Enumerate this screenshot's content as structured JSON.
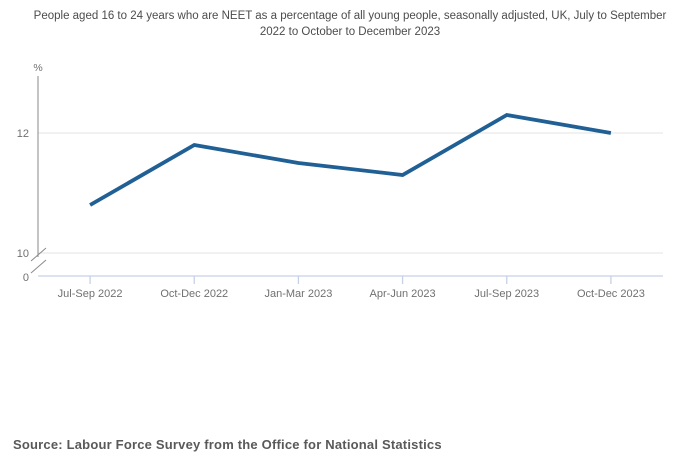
{
  "title": "People aged 16 to 24 years who are NEET as a percentage of all young people, seasonally adjusted, UK, July to September 2022 to October to December 2023",
  "source": "Source: Labour Force Survey from the Office for National Statistics",
  "chart_data": {
    "type": "line",
    "categories": [
      "Jul-Sep 2022",
      "Oct-Dec 2022",
      "Jan-Mar 2023",
      "Apr-Jun 2023",
      "Jul-Sep 2023",
      "Oct-Dec 2023"
    ],
    "values": [
      10.8,
      11.8,
      11.5,
      11.3,
      12.3,
      12.0
    ],
    "title": "People aged 16 to 24 years who are NEET as a percentage of all young people, seasonally adjusted, UK, July to September 2022 to October to December 2023",
    "xlabel": "",
    "ylabel": "%",
    "y_ticks": [
      0,
      10,
      12
    ],
    "y_axis_break_between": [
      0,
      10
    ],
    "ylim_display": [
      10,
      12.7
    ],
    "grid": "horizontal",
    "legend": "none",
    "colors": {
      "line": "#206095",
      "gridline": "#e3e3e3",
      "x_axis": "#c6d1e6",
      "y_axis": "#8a8a8a",
      "tick_text": "#707070"
    }
  }
}
